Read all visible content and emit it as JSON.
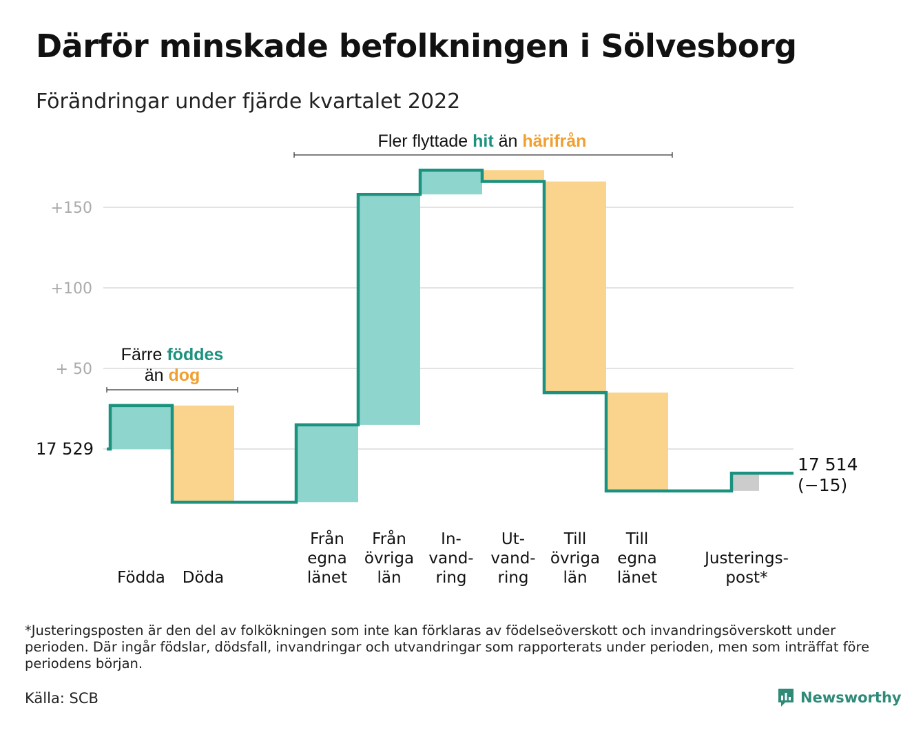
{
  "title": "Därför minskade befolkningen i Sölvesborg",
  "subtitle": "Förändringar under fjärde kvartalet 2022",
  "chart_data": {
    "type": "waterfall",
    "start": {
      "value": 17529,
      "label": "17 529"
    },
    "end": {
      "value": 17514,
      "label": "17 514",
      "change_label": "(−15)"
    },
    "y_tick_labels": [
      "+150",
      "+100",
      "+ 50"
    ],
    "y_tick_values": [
      150,
      100,
      50
    ],
    "ylim": [
      -35,
      175
    ],
    "grid": true,
    "steps": [
      {
        "category_lines": [
          "Födda"
        ],
        "value": 27,
        "kind": "increase"
      },
      {
        "category_lines": [
          "Döda"
        ],
        "value": -60,
        "kind": "decrease"
      },
      {
        "category_lines": [
          "Från",
          "egna",
          "länet"
        ],
        "value": 48,
        "kind": "increase"
      },
      {
        "category_lines": [
          "Från",
          "övriga",
          "län"
        ],
        "value": 143,
        "kind": "increase"
      },
      {
        "category_lines": [
          "In-",
          "vand-",
          "ring"
        ],
        "value": 15,
        "kind": "increase"
      },
      {
        "category_lines": [
          "Ut-",
          "vand-",
          "ring"
        ],
        "value": -7,
        "kind": "decrease"
      },
      {
        "category_lines": [
          "Till",
          "övriga",
          "län"
        ],
        "value": -131,
        "kind": "decrease"
      },
      {
        "category_lines": [
          "Till",
          "egna",
          "länet"
        ],
        "value": -61,
        "kind": "decrease"
      },
      {
        "category_lines": [
          "Justerings-",
          "post*"
        ],
        "value": 11,
        "kind": "adjustment"
      }
    ],
    "annotations": [
      {
        "id": "births",
        "line1_pre": "Färre ",
        "line1_hl": "föddes",
        "line2_pre": "än ",
        "line2_hl": "dog",
        "span": [
          0,
          1
        ]
      },
      {
        "id": "moves",
        "pre": "Fler flyttade ",
        "hl1": "hit",
        "mid": " än ",
        "hl2": "härifrån",
        "span": [
          2,
          7
        ]
      }
    ],
    "colors": {
      "increase": "#8dd5cd",
      "decrease": "#fad48c",
      "adjustment": "#cccccc",
      "line": "#1b927f",
      "highlight_in": "#1b927f",
      "highlight_out": "#f0a030",
      "grid": "#e3e3e3",
      "tick": "#aaaaaa"
    }
  },
  "footnote": "*Justeringsposten är den del av folkökningen som inte kan förklaras av födelseöverskott och invandringsöverskott under perioden. Där ingår födslar, dödsfall, invandringar och utvandringar som rapporterats under perioden, men som inträffat före periodens början.",
  "source": "Källa: SCB",
  "brand": {
    "name": "Newsworthy",
    "icon": "newsworthy-logo-icon"
  }
}
